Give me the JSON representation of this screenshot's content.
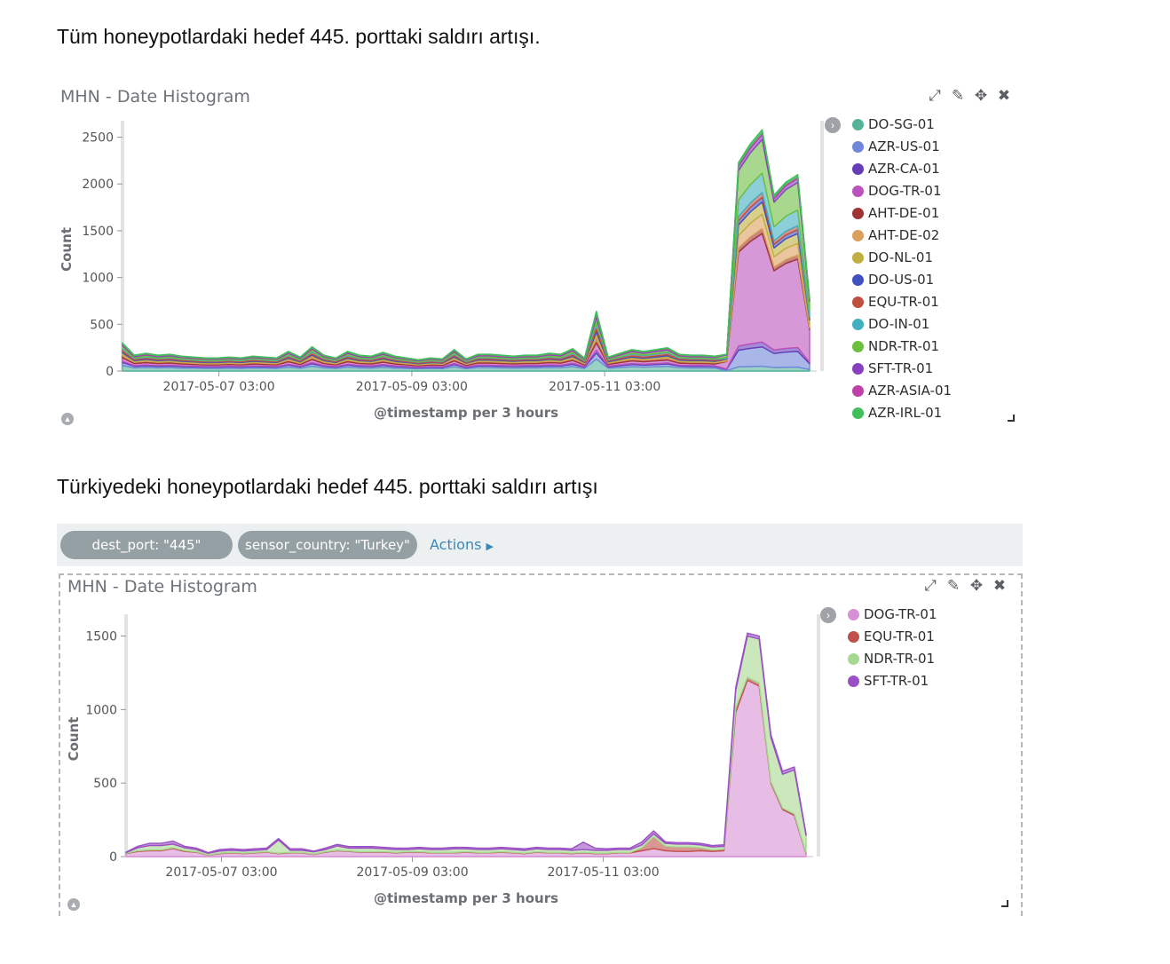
{
  "headings": {
    "top": "Tüm honeypotlardaki hedef 445. porttaki saldırı artışı.",
    "bottom": "Türkiyedeki honeypotlardaki hedef 445. porttaki saldırı artışı"
  },
  "filter_bar": {
    "filters": [
      "dest_port: \"445\"",
      "sensor_country: \"Turkey\""
    ],
    "actions_label": "Actions"
  },
  "icons": [
    "fullscreen-icon",
    "pencil-icon",
    "move-icon",
    "close-icon",
    "chevron-right-icon",
    "chevron-up-icon",
    "resize-handle-icon"
  ],
  "chart_data": [
    {
      "type": "area",
      "panel_title": "MHN - Date Histogram",
      "ylabel": "Count",
      "xlabel": "@timestamp per 3 hours",
      "ylim": [
        0,
        2600
      ],
      "yticks": [
        0,
        500,
        1000,
        1500,
        2000,
        2500
      ],
      "xlim": [
        "2017-05-06 03:00",
        "2017-05-13 06:00"
      ],
      "xticks": [
        "2017-05-07 03:00",
        "2017-05-09 03:00",
        "2017-05-11 03:00"
      ],
      "legend_position": "right",
      "total": [
        300,
        170,
        190,
        170,
        180,
        160,
        150,
        140,
        140,
        150,
        140,
        160,
        150,
        140,
        210,
        150,
        260,
        170,
        140,
        210,
        170,
        160,
        200,
        160,
        140,
        120,
        140,
        130,
        230,
        130,
        180,
        180,
        170,
        160,
        170,
        170,
        190,
        180,
        240,
        140,
        640,
        150,
        190,
        230,
        210,
        230,
        250,
        180,
        170,
        170,
        160,
        180,
        2230,
        2430,
        2580,
        1880,
        2020,
        2100,
        780
      ],
      "series": [
        {
          "name": "DO-SG-01",
          "color": "#54b399"
        },
        {
          "name": "AZR-US-01",
          "color": "#6f87d8"
        },
        {
          "name": "AZR-CA-01",
          "color": "#663db8"
        },
        {
          "name": "DOG-TR-01",
          "color": "#bc52bc"
        },
        {
          "name": "AHT-DE-01",
          "color": "#9e3533"
        },
        {
          "name": "AHT-DE-02",
          "color": "#daa05d"
        },
        {
          "name": "DO-NL-01",
          "color": "#bfaf40"
        },
        {
          "name": "DO-US-01",
          "color": "#4050bf"
        },
        {
          "name": "EQU-TR-01",
          "color": "#bf5040"
        },
        {
          "name": "DO-IN-01",
          "color": "#40afbf"
        },
        {
          "name": "NDR-TR-01",
          "color": "#6dbf40"
        },
        {
          "name": "SFT-TR-01",
          "color": "#8740bf"
        },
        {
          "name": "AZR-ASIA-01",
          "color": "#bf40a7"
        },
        {
          "name": "AZR-IRL-01",
          "color": "#40bf5c"
        }
      ],
      "stack_shares": {
        "early": [
          0.2,
          0.1,
          0.05,
          0.12,
          0.08,
          0.05,
          0.05,
          0.05,
          0.08,
          0.04,
          0.08,
          0.04,
          0.03,
          0.03
        ],
        "spike": [
          0.02,
          0.08,
          0.02,
          0.45,
          0.02,
          0.06,
          0.05,
          0.02,
          0.02,
          0.08,
          0.14,
          0.02,
          0.01,
          0.01
        ]
      }
    },
    {
      "type": "area",
      "panel_title": "MHN - Date Histogram",
      "ylabel": "Count",
      "xlabel": "@timestamp per 3 hours",
      "ylim": [
        0,
        1600
      ],
      "yticks": [
        0,
        500,
        1000,
        1500
      ],
      "xlim": [
        "2017-05-06 03:00",
        "2017-05-13 06:00"
      ],
      "xticks": [
        "2017-05-07 03:00",
        "2017-05-09 03:00",
        "2017-05-11 03:00"
      ],
      "legend_position": "right",
      "series": [
        {
          "name": "DOG-TR-01",
          "color": "#d790d6",
          "values": [
            20,
            35,
            40,
            40,
            55,
            35,
            30,
            10,
            20,
            25,
            20,
            25,
            30,
            20,
            25,
            25,
            15,
            30,
            40,
            35,
            30,
            30,
            30,
            25,
            30,
            30,
            25,
            25,
            25,
            30,
            25,
            25,
            30,
            25,
            20,
            30,
            25,
            25,
            20,
            25,
            20,
            20,
            25,
            25,
            40,
            55,
            40,
            35,
            35,
            40,
            35,
            40,
            980,
            1200,
            1160,
            500,
            320,
            280,
            20
          ]
        },
        {
          "name": "EQU-TR-01",
          "color": "#c0504a",
          "values": [
            2,
            5,
            5,
            5,
            5,
            5,
            3,
            2,
            3,
            3,
            3,
            3,
            3,
            3,
            3,
            3,
            2,
            3,
            3,
            3,
            3,
            3,
            3,
            3,
            3,
            3,
            3,
            3,
            3,
            3,
            3,
            3,
            3,
            3,
            3,
            3,
            3,
            3,
            3,
            3,
            3,
            3,
            3,
            3,
            20,
            80,
            30,
            30,
            30,
            20,
            10,
            10,
            30,
            20,
            20,
            10,
            10,
            10,
            5
          ]
        },
        {
          "name": "NDR-TR-01",
          "color": "#a5d98f",
          "values": [
            5,
            20,
            30,
            30,
            25,
            20,
            15,
            10,
            15,
            15,
            15,
            15,
            15,
            90,
            15,
            15,
            15,
            15,
            30,
            20,
            25,
            25,
            20,
            20,
            15,
            20,
            20,
            20,
            25,
            20,
            20,
            20,
            20,
            20,
            20,
            20,
            20,
            20,
            20,
            20,
            20,
            20,
            20,
            20,
            20,
            20,
            20,
            20,
            20,
            20,
            20,
            20,
            120,
            280,
            300,
            300,
            230,
            300,
            120
          ]
        },
        {
          "name": "SFT-TR-01",
          "color": "#9b4fc4",
          "values": [
            3,
            10,
            15,
            15,
            20,
            10,
            10,
            5,
            10,
            10,
            10,
            10,
            10,
            10,
            10,
            10,
            5,
            10,
            10,
            10,
            10,
            10,
            10,
            10,
            10,
            10,
            10,
            10,
            10,
            10,
            10,
            10,
            10,
            10,
            10,
            10,
            10,
            10,
            10,
            50,
            15,
            10,
            10,
            10,
            20,
            20,
            10,
            10,
            10,
            10,
            10,
            10,
            20,
            20,
            20,
            20,
            20,
            20,
            10
          ]
        }
      ]
    }
  ]
}
